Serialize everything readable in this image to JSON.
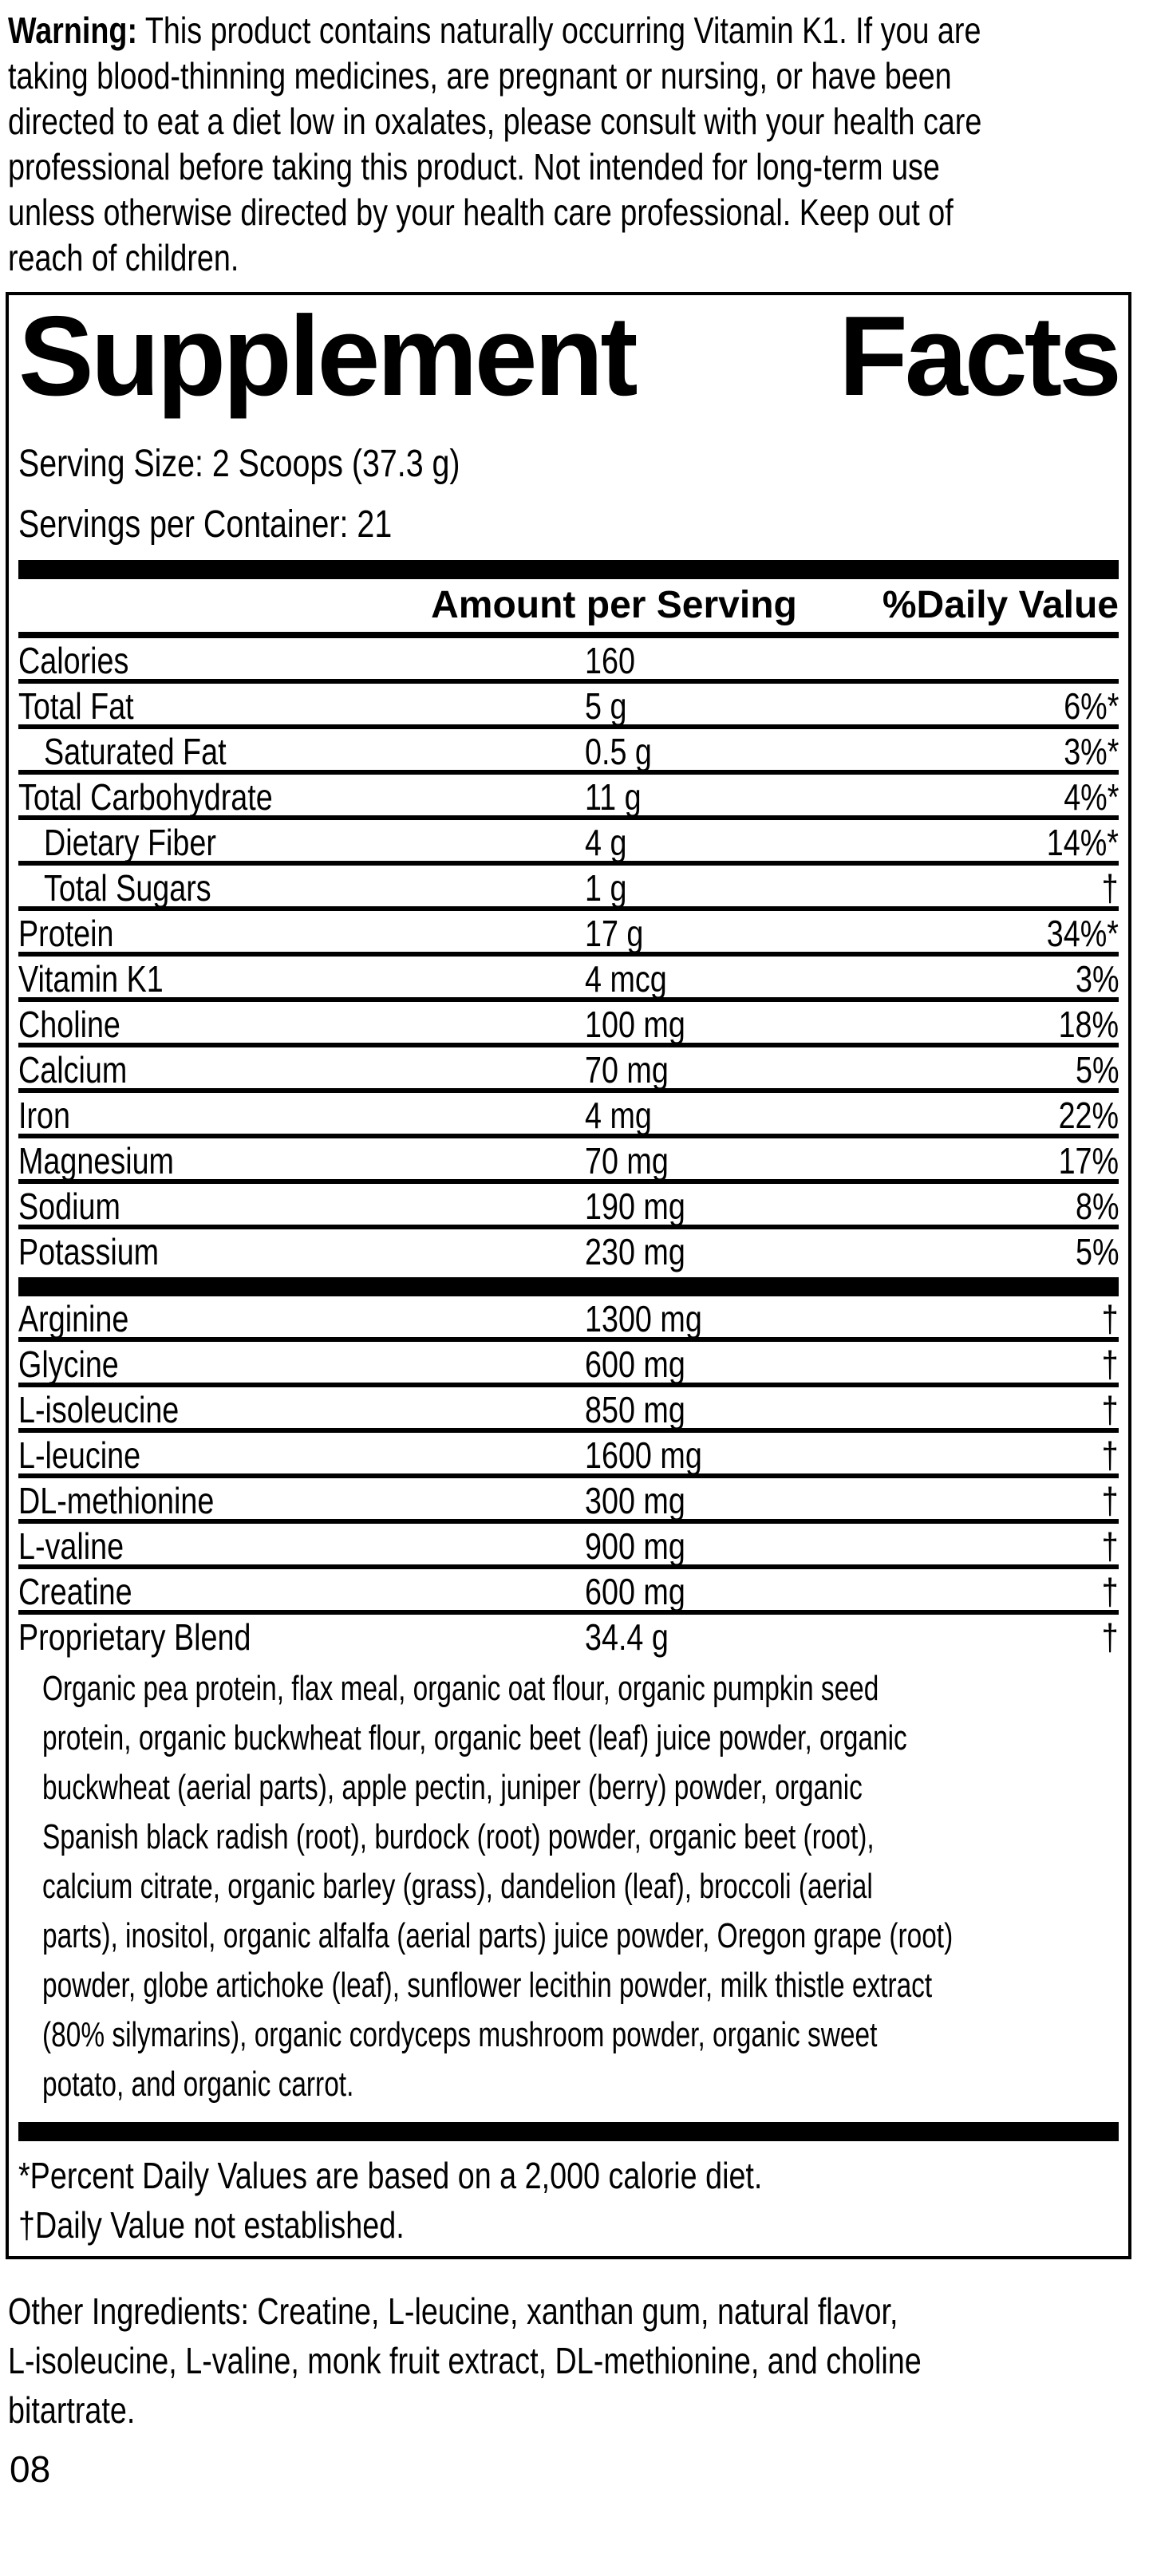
{
  "warning": {
    "label": "Warning:",
    "lines": [
      "This product contains naturally occurring Vitamin K1. If you are",
      "taking blood-thinning medicines, are pregnant or nursing, or have been",
      "directed to eat a diet low in oxalates, please consult with your health care",
      "professional before taking this product. Not intended for long-term use",
      "unless otherwise directed by your health care professional. Keep out of",
      "reach of children."
    ]
  },
  "facts": {
    "title": {
      "word1": "Supplement",
      "word2": "Facts"
    },
    "serving_size": "Serving Size: 2 Scoops (37.3 g)",
    "servings_per_container": "Servings per Container: 21",
    "columns": {
      "amount": "Amount per Serving",
      "daily_value": "%Daily Value"
    },
    "nutrients": [
      {
        "name": "Calories",
        "amount": "160",
        "dv": ""
      },
      {
        "name": "Total Fat",
        "amount": "5 g",
        "dv": "6%*"
      },
      {
        "name": "Saturated Fat",
        "amount": "0.5 g",
        "dv": "3%*"
      },
      {
        "name": "Total Carbohydrate",
        "amount": "11 g",
        "dv": "4%*"
      },
      {
        "name": "Dietary Fiber",
        "amount": "4 g",
        "dv": "14%*"
      },
      {
        "name": "Total Sugars",
        "amount": "1 g",
        "dv": "†"
      },
      {
        "name": "Protein",
        "amount": "17 g",
        "dv": "34%*"
      },
      {
        "name": "Vitamin K1",
        "amount": "4 mcg",
        "dv": "3%"
      },
      {
        "name": "Choline",
        "amount": "100 mg",
        "dv": "18%"
      },
      {
        "name": "Calcium",
        "amount": "70 mg",
        "dv": "5%"
      },
      {
        "name": "Iron",
        "amount": "4 mg",
        "dv": "22%"
      },
      {
        "name": "Magnesium",
        "amount": "70 mg",
        "dv": "17%"
      },
      {
        "name": "Sodium",
        "amount": "190 mg",
        "dv": "8%"
      },
      {
        "name": "Potassium",
        "amount": "230 mg",
        "dv": "5%"
      }
    ],
    "aminos": [
      {
        "name": "Arginine",
        "amount": "1300 mg",
        "dv": "†"
      },
      {
        "name": "Glycine",
        "amount": "600 mg",
        "dv": "†"
      },
      {
        "name": "L-isoleucine",
        "amount": "850 mg",
        "dv": "†"
      },
      {
        "name": "L-leucine",
        "amount": "1600 mg",
        "dv": "†"
      },
      {
        "name": "DL-methionine",
        "amount": "300 mg",
        "dv": "†"
      },
      {
        "name": "L-valine",
        "amount": "900 mg",
        "dv": "†"
      },
      {
        "name": "Creatine",
        "amount": "600 mg",
        "dv": "†"
      }
    ],
    "proprietary": {
      "name": "Proprietary Blend",
      "amount": "34.4 g",
      "dv": "†"
    },
    "blend_lines": [
      "Organic pea protein, flax meal, organic oat flour, organic pumpkin seed",
      "protein, organic buckwheat flour, organic beet (leaf) juice powder, organic",
      "buckwheat (aerial parts), apple pectin, juniper (berry) powder, organic",
      "Spanish black radish (root), burdock (root) powder, organic beet (root),",
      "calcium citrate, organic barley (grass), dandelion (leaf), broccoli (aerial",
      "parts), inositol, organic alfalfa (aerial parts) juice powder, Oregon grape (root)",
      "powder, globe artichoke (leaf), sunflower lecithin powder, milk thistle extract",
      "(80% silymarins), organic cordyceps mushroom powder, organic sweet",
      "potato, and organic carrot."
    ],
    "footnotes": [
      "*Percent Daily Values are based on a 2,000 calorie diet.",
      "†Daily Value not established."
    ]
  },
  "other_ingredients": {
    "lines": [
      "Other Ingredients: Creatine, L-leucine, xanthan gum, natural flavor,",
      "L-isoleucine, L-valine, monk fruit extract, DL-methionine, and choline",
      "bitartrate."
    ]
  },
  "page_number": "08"
}
